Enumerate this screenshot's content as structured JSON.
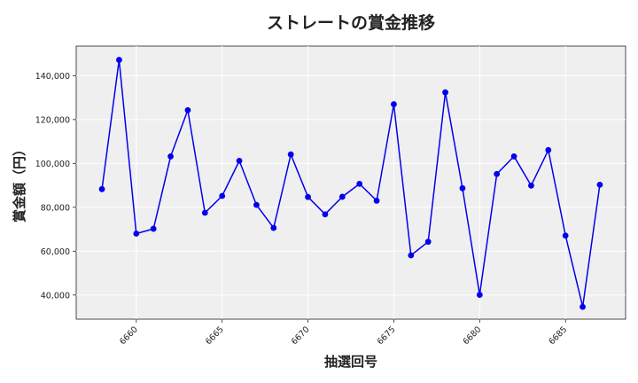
{
  "chart_data": {
    "type": "line",
    "title": "ストレートの賞金推移",
    "xlabel": "抽選回号",
    "ylabel": "賞金額（円）",
    "xlim": [
      6656.5,
      6688.5
    ],
    "ylim": [
      29000,
      153500
    ],
    "x_ticks": [
      6660,
      6665,
      6670,
      6675,
      6680,
      6685
    ],
    "x_tick_labels": [
      "6660",
      "6665",
      "6670",
      "6675",
      "6680",
      "6685"
    ],
    "y_ticks": [
      40000,
      60000,
      80000,
      100000,
      120000,
      140000
    ],
    "y_tick_labels": [
      "40,000",
      "60,000",
      "80,000",
      "100,000",
      "120,000",
      "140,000"
    ],
    "grid": true,
    "background": "#efefef",
    "series": [
      {
        "color": "#0000ee",
        "x": [
          6658,
          6659,
          6660,
          6661,
          6662,
          6663,
          6664,
          6665,
          6666,
          6667,
          6668,
          6669,
          6670,
          6671,
          6672,
          6673,
          6674,
          6675,
          6676,
          6677,
          6678,
          6679,
          6680,
          6681,
          6682,
          6683,
          6684,
          6685,
          6686,
          6687
        ],
        "values": [
          88300,
          147200,
          68000,
          70200,
          103200,
          124300,
          77500,
          85200,
          101200,
          81100,
          70600,
          104100,
          84700,
          76800,
          84800,
          90700,
          83000,
          127000,
          58100,
          64300,
          132400,
          88700,
          40100,
          95200,
          103200,
          89900,
          106100,
          67100,
          34600,
          90300
        ]
      }
    ]
  }
}
